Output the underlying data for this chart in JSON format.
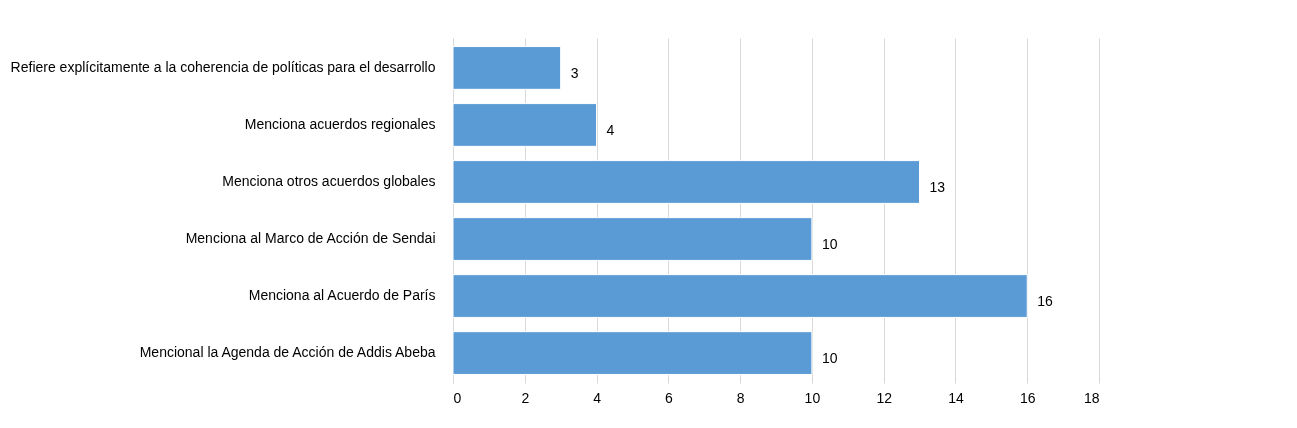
{
  "chart_data": {
    "type": "bar",
    "orientation": "horizontal",
    "categories": [
      "Refiere explícitamente a la coherencia de políticas para el desarrollo",
      "Menciona acuerdos regionales",
      "Menciona otros acuerdos globales",
      "Menciona al Marco de Acción de Sendai",
      "Menciona al Acuerdo de París",
      "Mencional la Agenda de Acción de Addis Abeba"
    ],
    "values": [
      3,
      4,
      13,
      10,
      16,
      10
    ],
    "color": "#5b9bd5",
    "xlim": [
      0,
      18
    ],
    "xticks": [
      0,
      2,
      4,
      6,
      8,
      10,
      12,
      14,
      16,
      18
    ],
    "grid": "x",
    "data_labels": true
  }
}
